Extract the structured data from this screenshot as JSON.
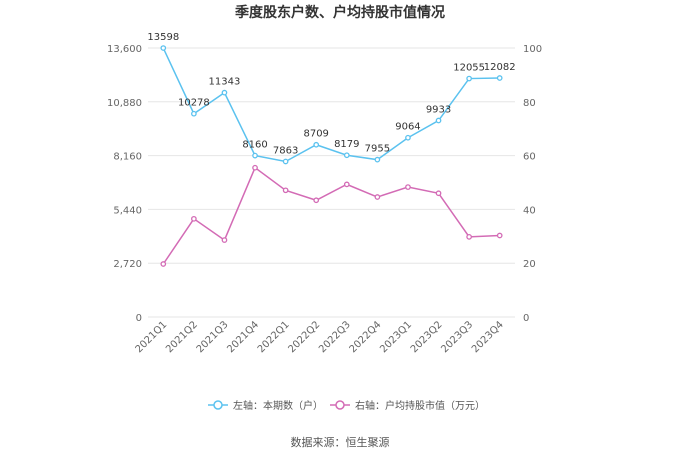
{
  "chart_data": {
    "type": "line",
    "title": "季度股东户数、户均持股市值情况",
    "categories": [
      "2021Q1",
      "2021Q2",
      "2021Q3",
      "2021Q4",
      "2022Q1",
      "2022Q2",
      "2022Q3",
      "2022Q4",
      "2023Q1",
      "2023Q2",
      "2023Q3",
      "2023Q4"
    ],
    "left_axis": {
      "ylim": [
        0,
        13600
      ],
      "ticks": [
        "0",
        "2,720",
        "5,440",
        "8,160",
        "10,880",
        "13,600"
      ]
    },
    "right_axis": {
      "ylim": [
        0,
        100
      ],
      "ticks": [
        "0",
        "20",
        "40",
        "60",
        "80",
        "100"
      ]
    },
    "series": [
      {
        "name": "左轴：本期数（户）",
        "axis": "left",
        "color": "#5bc2ef",
        "values": [
          13598,
          10278,
          11343,
          8160,
          7863,
          8709,
          8179,
          7955,
          9064,
          9933,
          12055,
          12082
        ],
        "labels": [
          "13598",
          "10278",
          "11343",
          "8160",
          "7863",
          "8709",
          "8179",
          "7955",
          "9064",
          "9933",
          "12055",
          "12082"
        ]
      },
      {
        "name": "右轴：户均持股市值（万元）",
        "axis": "right",
        "color": "#d36bb5",
        "values": [
          19.7,
          36.5,
          28.6,
          55.5,
          47.1,
          43.4,
          49.3,
          44.6,
          48.3,
          46.0,
          29.8,
          30.3
        ]
      }
    ],
    "legend_position": "bottom",
    "grid": true
  },
  "source_label": "数据来源：恒生聚源"
}
